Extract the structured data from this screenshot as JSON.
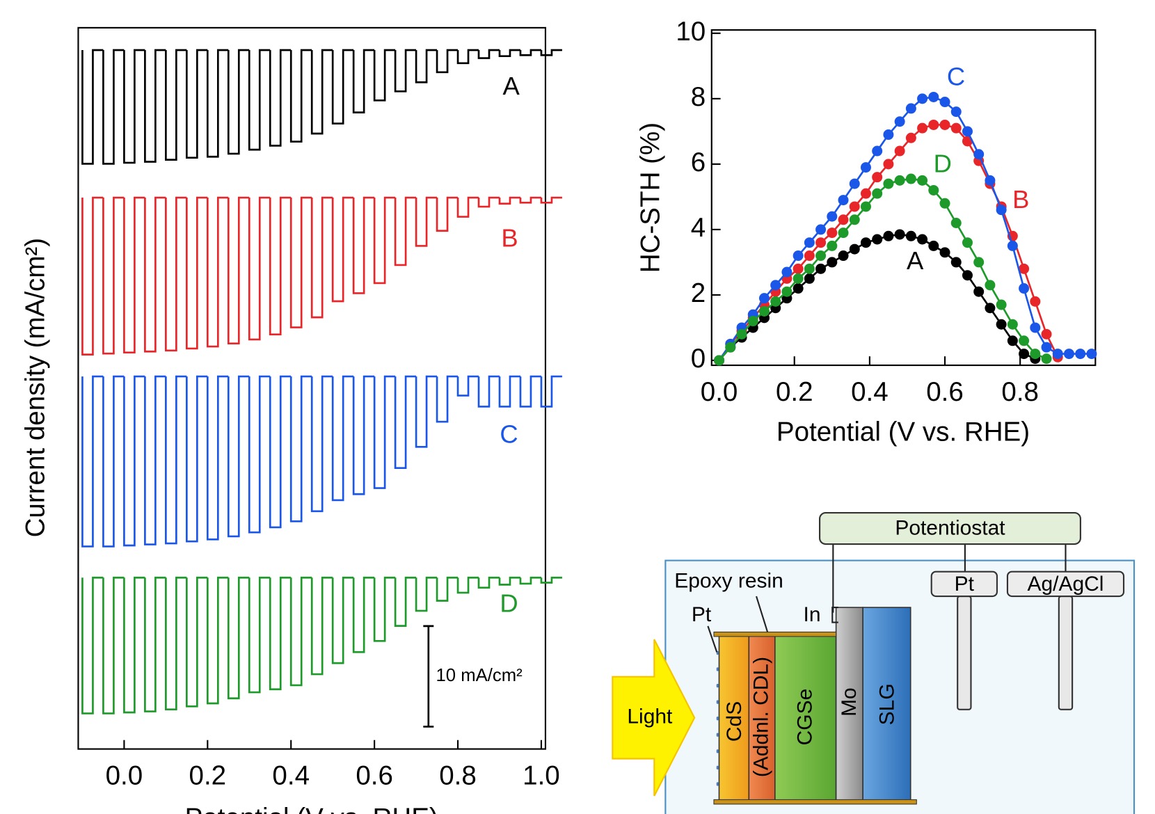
{
  "chart_data": [
    {
      "type": "chopped",
      "x_label": "Potential (V vs. RHE)",
      "y_label": "Current density (mA/cm²)",
      "xlim": [
        -0.11,
        1.01
      ],
      "xticks": [
        {
          "value": 0,
          "label": "0.0"
        },
        {
          "value": 0.2,
          "label": "0.2"
        },
        {
          "value": 0.4,
          "label": "0.4"
        },
        {
          "value": 0.6,
          "label": "0.6"
        },
        {
          "value": 0.8,
          "label": "0.8"
        },
        {
          "value": 1.0,
          "label": "1.0"
        }
      ],
      "x": [
        -0.1,
        -0.05,
        0,
        0.05,
        0.1,
        0.15,
        0.2,
        0.25,
        0.3,
        0.35,
        0.4,
        0.45,
        0.5,
        0.55,
        0.6,
        0.65,
        0.7,
        0.75,
        0.8,
        0.85,
        0.9,
        0.95,
        1.0
      ],
      "series": [
        {
          "name": "A",
          "color": "#000000",
          "values": [
            -11.3,
            -11.3,
            -11.2,
            -11.1,
            -10.9,
            -10.7,
            -10.6,
            -10.3,
            -9.9,
            -9.5,
            -9.1,
            -8.3,
            -7.3,
            -6.2,
            -5.0,
            -4.1,
            -3.2,
            -2.2,
            -1.3,
            -0.8,
            -0.6,
            -0.5,
            -0.5
          ]
        },
        {
          "name": "B",
          "color": "#e8262a",
          "values": [
            -15.6,
            -15.5,
            -15.4,
            -15.3,
            -15.2,
            -15.0,
            -14.8,
            -14.5,
            -14.1,
            -13.6,
            -12.9,
            -11.9,
            -10.3,
            -9.5,
            -8.5,
            -6.7,
            -4.8,
            -3.3,
            -1.9,
            -0.9,
            -0.6,
            -0.5,
            -0.5
          ]
        },
        {
          "name": "C",
          "color": "#1a56e8",
          "values": [
            -16.9,
            -16.9,
            -16.8,
            -16.7,
            -16.6,
            -16.4,
            -16.2,
            -15.9,
            -15.5,
            -15.0,
            -14.4,
            -13.4,
            -12.3,
            -11.7,
            -11.1,
            -9.1,
            -7.0,
            -4.5,
            -1.9,
            -3.0,
            -3.0,
            -3.0,
            -3.0
          ]
        },
        {
          "name": "D",
          "color": "#1e9a2a",
          "values": [
            -13.5,
            -13.5,
            -13.4,
            -13.3,
            -13.1,
            -12.8,
            -12.5,
            -12.0,
            -11.4,
            -11.1,
            -10.7,
            -9.6,
            -8.5,
            -7.4,
            -6.3,
            -4.8,
            -3.3,
            -2.3,
            -1.5,
            -1.0,
            -0.7,
            -0.6,
            -0.5
          ]
        }
      ],
      "scale_bar": {
        "value": 10,
        "label": "10 mA/cm²"
      }
    },
    {
      "type": "line",
      "x_label": "Potential (V vs. RHE)",
      "y_label": "HC-STH (%)",
      "xlim": [
        -0.02,
        1.0
      ],
      "ylim": [
        -0.15,
        10.1
      ],
      "xticks": [
        {
          "value": 0,
          "label": "0.0"
        },
        {
          "value": 0.2,
          "label": "0.2"
        },
        {
          "value": 0.4,
          "label": "0.4"
        },
        {
          "value": 0.6,
          "label": "0.6"
        },
        {
          "value": 0.8,
          "label": "0.8"
        }
      ],
      "yticks": [
        0,
        2,
        4,
        6,
        8,
        10
      ],
      "x": [
        0,
        0.03,
        0.06,
        0.09,
        0.12,
        0.15,
        0.18,
        0.21,
        0.24,
        0.27,
        0.3,
        0.33,
        0.36,
        0.39,
        0.42,
        0.45,
        0.48,
        0.51,
        0.54,
        0.57,
        0.6,
        0.63,
        0.66,
        0.69,
        0.72,
        0.75,
        0.78,
        0.81,
        0.84,
        0.87,
        0.9,
        0.93,
        0.96,
        0.99
      ],
      "series": [
        {
          "name": "A",
          "color": "#000000",
          "values": [
            0,
            0.4,
            0.7,
            1.0,
            1.3,
            1.6,
            1.9,
            2.2,
            2.5,
            2.8,
            3.0,
            3.2,
            3.4,
            3.6,
            3.7,
            3.8,
            3.85,
            3.8,
            3.7,
            3.5,
            3.3,
            3.0,
            2.6,
            2.1,
            1.6,
            1.1,
            0.6,
            0.2,
            0.05,
            null,
            null,
            null,
            null,
            null
          ]
        },
        {
          "name": "B",
          "color": "#e8262a",
          "values": [
            0,
            0.5,
            0.9,
            1.3,
            1.7,
            2.1,
            2.5,
            2.8,
            3.2,
            3.6,
            3.9,
            4.3,
            4.7,
            5.1,
            5.6,
            6.0,
            6.4,
            6.8,
            7.1,
            7.2,
            7.2,
            7.1,
            6.7,
            6.1,
            5.4,
            4.7,
            3.8,
            2.8,
            1.8,
            0.8,
            0.1,
            null,
            null,
            null
          ]
        },
        {
          "name": "C",
          "color": "#1a56e8",
          "values": [
            0,
            0.5,
            1.0,
            1.4,
            1.9,
            2.3,
            2.7,
            3.2,
            3.6,
            4.0,
            4.4,
            4.9,
            5.4,
            5.9,
            6.4,
            6.9,
            7.3,
            7.7,
            8.0,
            8.05,
            7.9,
            7.6,
            7.0,
            6.3,
            5.5,
            4.6,
            3.5,
            2.2,
            1.0,
            0.4,
            0.2,
            0.2,
            0.2,
            0.2
          ]
        },
        {
          "name": "D",
          "color": "#1e9a2a",
          "values": [
            0,
            0.4,
            0.8,
            1.2,
            1.5,
            1.8,
            2.1,
            2.5,
            2.8,
            3.2,
            3.5,
            3.9,
            4.3,
            4.7,
            5.1,
            5.4,
            5.5,
            5.55,
            5.5,
            5.2,
            4.8,
            4.2,
            3.6,
            3.0,
            2.3,
            1.7,
            1.1,
            0.6,
            0.2,
            0.05,
            null,
            null,
            null,
            null
          ]
        }
      ]
    }
  ],
  "diagram": {
    "potentiostat": "Potentiostat",
    "counter_electrode": "Pt",
    "reference_electrode": "Ag/AgCl",
    "epoxy": "Epoxy resin",
    "catalyst": "Pt",
    "contact": "In",
    "light": "Light",
    "layers": [
      "CdS",
      "(Addnl. CDL)",
      "CGSe",
      "Mo",
      "SLG"
    ]
  }
}
